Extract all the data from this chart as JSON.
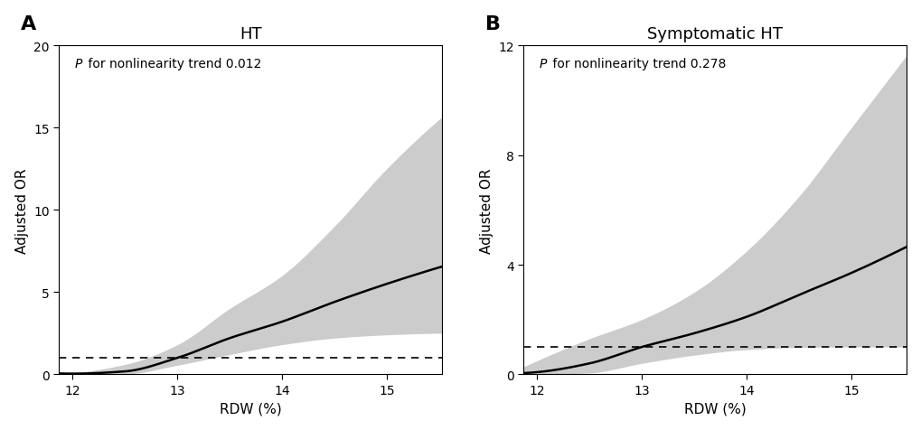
{
  "panel_A": {
    "title": "HT",
    "label": "A",
    "annotation_italic": "P",
    "annotation_rest": " for nonlinearity trend 0.012",
    "xlim": [
      11.87,
      15.53
    ],
    "ylim": [
      0,
      20
    ],
    "yticks": [
      0,
      5,
      10,
      15,
      20
    ],
    "xticks": [
      12,
      13,
      14,
      15
    ],
    "xlabel": "RDW (%)",
    "ylabel": "Adjusted OR",
    "ref_line": 1.0,
    "or_points": [
      [
        12.0,
        0.04
      ],
      [
        12.5,
        0.18
      ],
      [
        13.0,
        1.0
      ],
      [
        13.5,
        2.2
      ],
      [
        14.0,
        3.2
      ],
      [
        14.5,
        4.4
      ],
      [
        15.0,
        5.5
      ],
      [
        15.5,
        6.5
      ]
    ],
    "ci_lower_points": [
      [
        12.0,
        0.0
      ],
      [
        12.5,
        0.02
      ],
      [
        13.0,
        0.55
      ],
      [
        13.5,
        1.2
      ],
      [
        14.0,
        1.8
      ],
      [
        14.5,
        2.2
      ],
      [
        15.0,
        2.4
      ],
      [
        15.5,
        2.5
      ]
    ],
    "ci_upper_points": [
      [
        12.0,
        0.12
      ],
      [
        12.5,
        0.6
      ],
      [
        13.0,
        1.8
      ],
      [
        13.5,
        4.0
      ],
      [
        14.0,
        6.0
      ],
      [
        14.5,
        9.0
      ],
      [
        15.0,
        12.5
      ],
      [
        15.5,
        15.5
      ]
    ]
  },
  "panel_B": {
    "title": "Symptomatic HT",
    "label": "B",
    "annotation_italic": "P",
    "annotation_rest": " for nonlinearity trend 0.278",
    "xlim": [
      11.87,
      15.53
    ],
    "ylim": [
      0,
      12
    ],
    "yticks": [
      0,
      4,
      8,
      12
    ],
    "xticks": [
      12,
      13,
      14,
      15
    ],
    "xlabel": "RDW (%)",
    "ylabel": "Adjusted OR",
    "ref_line": 1.0,
    "or_points": [
      [
        12.0,
        0.08
      ],
      [
        12.5,
        0.4
      ],
      [
        13.0,
        1.0
      ],
      [
        13.5,
        1.5
      ],
      [
        14.0,
        2.1
      ],
      [
        14.5,
        2.9
      ],
      [
        15.0,
        3.7
      ],
      [
        15.5,
        4.6
      ]
    ],
    "ci_lower_points": [
      [
        12.0,
        0.0
      ],
      [
        12.5,
        0.05
      ],
      [
        13.0,
        0.4
      ],
      [
        13.5,
        0.7
      ],
      [
        14.0,
        0.9
      ],
      [
        14.5,
        0.98
      ],
      [
        15.0,
        1.0
      ],
      [
        15.5,
        1.0
      ]
    ],
    "ci_upper_points": [
      [
        12.0,
        0.5
      ],
      [
        12.5,
        1.3
      ],
      [
        13.0,
        2.0
      ],
      [
        13.5,
        3.0
      ],
      [
        14.0,
        4.5
      ],
      [
        14.5,
        6.5
      ],
      [
        15.0,
        9.0
      ],
      [
        15.5,
        11.5
      ]
    ]
  },
  "line_color": "#000000",
  "shade_color": "#cccccc",
  "dashed_color": "#000000",
  "background_color": "#ffffff",
  "font_size_title": 13,
  "font_size_label": 16,
  "font_size_annotation": 10,
  "font_size_axis": 11,
  "font_size_tick": 10
}
